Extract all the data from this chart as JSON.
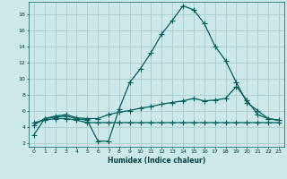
{
  "xlabel": "Humidex (Indice chaleur)",
  "background_color": "#cce8e8",
  "grid_color": "#aacccc",
  "line_color": "#006060",
  "xlim": [
    -0.5,
    23.5
  ],
  "ylim": [
    1.5,
    19.5
  ],
  "xticks": [
    0,
    1,
    2,
    3,
    4,
    5,
    6,
    7,
    8,
    9,
    10,
    11,
    12,
    13,
    14,
    15,
    16,
    17,
    18,
    19,
    20,
    21,
    22,
    23
  ],
  "yticks": [
    2,
    4,
    6,
    8,
    10,
    12,
    14,
    16,
    18
  ],
  "line1_x": [
    0,
    1,
    2,
    3,
    4,
    5,
    6,
    7,
    8,
    9,
    10,
    11,
    12,
    13,
    14,
    15,
    16,
    17,
    18,
    19,
    20,
    21,
    22,
    23
  ],
  "line1_y": [
    3.0,
    5.0,
    5.2,
    5.3,
    5.0,
    4.8,
    2.2,
    2.2,
    6.2,
    9.5,
    11.2,
    13.2,
    15.5,
    17.2,
    19.0,
    18.5,
    16.8,
    14.0,
    12.2,
    9.5,
    7.0,
    6.0,
    5.0,
    4.8
  ],
  "line2_x": [
    0,
    1,
    2,
    3,
    4,
    5,
    6,
    7,
    8,
    9,
    10,
    11,
    12,
    13,
    14,
    15,
    16,
    17,
    18,
    19,
    20,
    21,
    22,
    23
  ],
  "line2_y": [
    4.2,
    5.0,
    5.3,
    5.5,
    5.1,
    5.0,
    5.0,
    5.5,
    5.8,
    6.0,
    6.3,
    6.5,
    6.8,
    7.0,
    7.2,
    7.5,
    7.2,
    7.3,
    7.5,
    9.0,
    7.3,
    5.5,
    5.0,
    4.8
  ],
  "line3_x": [
    0,
    1,
    2,
    3,
    4,
    5,
    6,
    7,
    8,
    9,
    10,
    11,
    12,
    13,
    14,
    15,
    16,
    17,
    18,
    19,
    20,
    21,
    22,
    23
  ],
  "line3_y": [
    4.5,
    4.8,
    5.0,
    5.0,
    4.8,
    4.5,
    4.5,
    4.5,
    4.5,
    4.5,
    4.5,
    4.5,
    4.5,
    4.5,
    4.5,
    4.5,
    4.5,
    4.5,
    4.5,
    4.5,
    4.5,
    4.5,
    4.5,
    4.5
  ]
}
